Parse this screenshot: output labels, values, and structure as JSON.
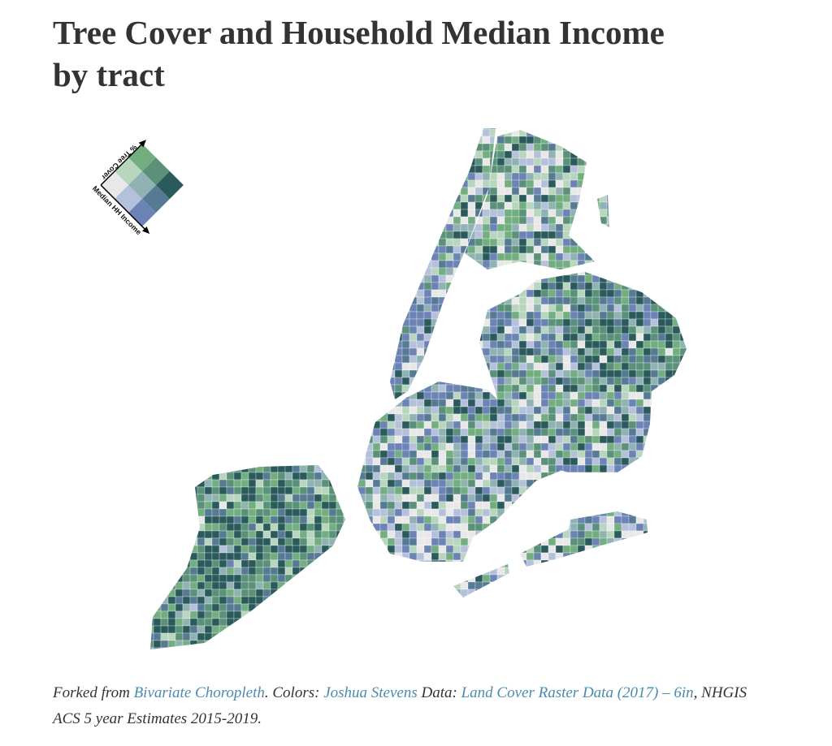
{
  "title": "Tree Cover and Household Median Income by tract",
  "legend": {
    "y_label": "% Tree Cover",
    "x_label": "Median HH Income",
    "colors": [
      [
        "#e8e8e8",
        "#b5c0da",
        "#6c83b5"
      ],
      [
        "#b8d6be",
        "#90b2b3",
        "#567994"
      ],
      [
        "#73ae80",
        "#5a9178",
        "#2a5a5b"
      ]
    ]
  },
  "footer": {
    "forked_label": "Forked from",
    "source_link": "Bivariate Choropleth",
    "colors_label": ". Colors:",
    "colors_link": "Joshua Stevens",
    "data_label": "Data:",
    "data_link": "Land Cover Raster Data (2017) – 6in",
    "data_rest": ", NHGIS ACS 5 year Estimates 2015-2019."
  }
}
